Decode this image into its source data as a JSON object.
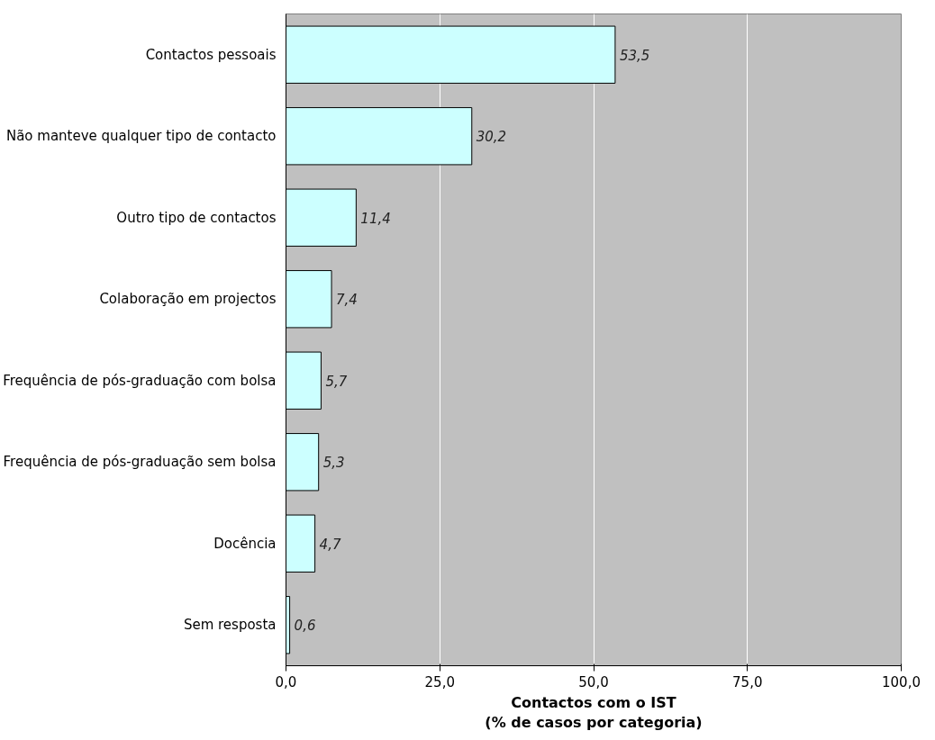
{
  "chart_data": {
    "type": "bar",
    "orientation": "horizontal",
    "categories": [
      "Contactos pessoais",
      "Não manteve qualquer tipo de contacto",
      "Outro tipo de contactos",
      "Colaboração em projectos",
      "Frequência de pós-graduação com bolsa",
      "Frequência de pós-graduação sem bolsa",
      "Docência",
      "Sem resposta"
    ],
    "values": [
      53.5,
      30.2,
      11.4,
      7.4,
      5.7,
      5.3,
      4.7,
      0.6
    ],
    "value_labels": [
      "53,5",
      "30,2",
      "11,4",
      "7,4",
      "5,7",
      "5,3",
      "4,7",
      "0,6"
    ],
    "color": "#ccffff",
    "xlim": [
      0,
      100
    ],
    "xticks": [
      {
        "value": 0,
        "label": "0,0"
      },
      {
        "value": 25,
        "label": "25,0"
      },
      {
        "value": 50,
        "label": "50,0"
      },
      {
        "value": 75,
        "label": "75,0"
      },
      {
        "value": 100,
        "label": "100,0"
      }
    ],
    "xlabel": "Contactos com o IST\n(% de casos por categoria)",
    "grid": "x"
  }
}
